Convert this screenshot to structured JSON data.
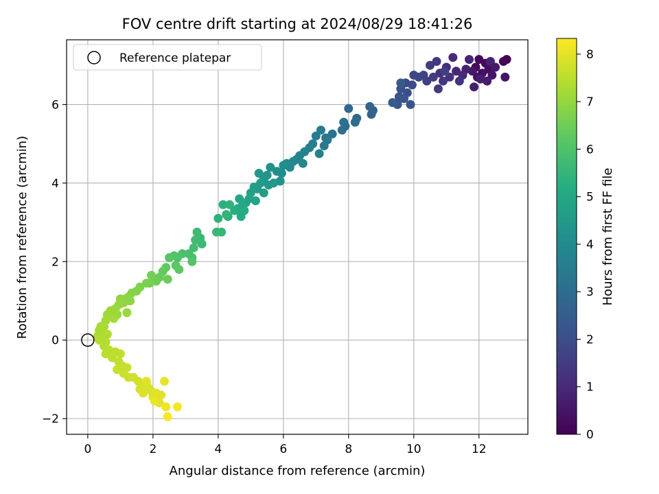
{
  "chart_data": {
    "type": "scatter",
    "title": "FOV centre drift starting at 2024/08/29 18:41:26",
    "xlabel": "Angular distance from reference (arcmin)",
    "ylabel": "Rotation from reference (arcmin)",
    "xlim": [
      -0.65,
      13.5
    ],
    "ylim": [
      -2.4,
      7.65
    ],
    "xticks": [
      0,
      2,
      4,
      6,
      8,
      10,
      12
    ],
    "yticks": [
      -2,
      0,
      2,
      4,
      6
    ],
    "grid": true,
    "legend": {
      "position": "top-left",
      "entries": [
        "Reference platepar"
      ]
    },
    "reference_point": {
      "x": 0,
      "y": 0,
      "label": "Reference platepar"
    },
    "colorbar": {
      "label": "Hours from first FF file",
      "min": 0,
      "max": 8.33,
      "ticks": [
        0,
        1,
        2,
        3,
        4,
        5,
        6,
        7,
        8
      ],
      "colormap": "viridis"
    },
    "series": [
      {
        "color_by": "hours",
        "points": [
          [
            12.85,
            7.15,
            0.05
          ],
          [
            12.75,
            7.1,
            0.1
          ],
          [
            12.0,
            7.15,
            0.15
          ],
          [
            12.2,
            7.05,
            0.2
          ],
          [
            11.9,
            6.95,
            0.25
          ],
          [
            12.3,
            6.9,
            0.3
          ],
          [
            12.1,
            6.8,
            0.35
          ],
          [
            11.95,
            6.7,
            0.4
          ],
          [
            12.4,
            6.75,
            0.45
          ],
          [
            12.8,
            6.7,
            0.5
          ],
          [
            11.8,
            6.85,
            0.55
          ],
          [
            12.5,
            6.95,
            0.6
          ],
          [
            12.25,
            6.6,
            0.65
          ],
          [
            11.85,
            6.45,
            0.7
          ],
          [
            12.05,
            6.65,
            0.75
          ],
          [
            11.6,
            6.9,
            0.8
          ],
          [
            12.35,
            7.1,
            0.85
          ],
          [
            11.7,
            7.15,
            0.9
          ],
          [
            11.3,
            6.85,
            0.95
          ],
          [
            11.5,
            6.75,
            1.0
          ],
          [
            11.2,
            7.2,
            1.05
          ],
          [
            11.0,
            6.95,
            1.1
          ],
          [
            10.8,
            6.8,
            1.15
          ],
          [
            11.4,
            6.6,
            1.2
          ],
          [
            11.1,
            6.7,
            1.25
          ],
          [
            10.9,
            6.6,
            1.3
          ],
          [
            10.7,
            7.1,
            1.35
          ],
          [
            10.5,
            7.0,
            1.4
          ],
          [
            10.75,
            6.4,
            1.45
          ],
          [
            10.6,
            6.7,
            1.5
          ],
          [
            10.4,
            6.6,
            1.55
          ],
          [
            10.95,
            6.85,
            1.6
          ],
          [
            10.3,
            6.75,
            1.7
          ],
          [
            10.0,
            6.75,
            1.75
          ],
          [
            10.15,
            6.7,
            1.8
          ],
          [
            9.75,
            6.55,
            1.9
          ],
          [
            9.95,
            6.5,
            1.95
          ],
          [
            9.8,
            6.3,
            2.0
          ],
          [
            9.6,
            6.4,
            2.1
          ],
          [
            9.55,
            6.2,
            2.15
          ],
          [
            9.7,
            6.15,
            2.2
          ],
          [
            9.9,
            6.0,
            2.25
          ],
          [
            9.5,
            6.0,
            2.3
          ],
          [
            9.35,
            6.05,
            2.4
          ],
          [
            9.6,
            6.55,
            2.45
          ],
          [
            8.75,
            5.85,
            2.6
          ],
          [
            8.65,
            5.95,
            2.65
          ],
          [
            8.7,
            5.75,
            2.7
          ],
          [
            8.25,
            5.65,
            2.8
          ],
          [
            8.0,
            5.9,
            2.85
          ],
          [
            8.2,
            5.55,
            2.95
          ],
          [
            7.9,
            5.45,
            3.0
          ],
          [
            7.85,
            5.55,
            3.05
          ],
          [
            7.8,
            5.35,
            3.1
          ],
          [
            7.5,
            5.25,
            3.2
          ],
          [
            7.3,
            5.15,
            3.3
          ],
          [
            7.25,
            4.95,
            3.35
          ],
          [
            7.35,
            5.1,
            3.4
          ],
          [
            7.15,
            5.35,
            3.45
          ],
          [
            7.0,
            5.2,
            3.5
          ],
          [
            6.9,
            5.0,
            3.55
          ],
          [
            6.8,
            4.9,
            3.6
          ],
          [
            7.1,
            4.75,
            3.65
          ],
          [
            6.65,
            4.8,
            3.7
          ],
          [
            6.5,
            4.7,
            3.75
          ],
          [
            6.4,
            4.6,
            3.8
          ],
          [
            6.6,
            4.5,
            3.85
          ],
          [
            6.3,
            4.55,
            3.9
          ],
          [
            6.1,
            4.5,
            3.95
          ],
          [
            6.2,
            4.4,
            4.0
          ],
          [
            6.0,
            4.45,
            4.05
          ],
          [
            5.95,
            4.25,
            4.1
          ],
          [
            5.8,
            4.3,
            4.15
          ],
          [
            5.9,
            4.05,
            4.2
          ],
          [
            5.6,
            4.4,
            4.25
          ],
          [
            5.5,
            4.2,
            4.3
          ],
          [
            5.4,
            4.1,
            4.35
          ],
          [
            5.7,
            4.0,
            4.4
          ],
          [
            5.55,
            3.95,
            4.45
          ],
          [
            5.25,
            4.25,
            4.5
          ],
          [
            5.3,
            4.0,
            4.55
          ],
          [
            5.2,
            3.85,
            4.6
          ],
          [
            5.4,
            3.75,
            4.65
          ],
          [
            5.1,
            3.9,
            4.7
          ],
          [
            5.0,
            3.75,
            4.75
          ],
          [
            4.95,
            3.6,
            4.8
          ],
          [
            4.85,
            3.5,
            4.85
          ],
          [
            5.15,
            3.55,
            4.9
          ],
          [
            4.75,
            3.45,
            4.95
          ],
          [
            4.65,
            3.6,
            5.0
          ],
          [
            4.6,
            3.35,
            5.05
          ],
          [
            4.7,
            3.15,
            5.1
          ],
          [
            4.8,
            3.3,
            5.15
          ],
          [
            4.5,
            3.3,
            5.2
          ],
          [
            4.3,
            3.15,
            5.25
          ],
          [
            4.15,
            3.45,
            5.3
          ],
          [
            4.0,
            3.1,
            5.35
          ],
          [
            4.35,
            3.45,
            5.4
          ],
          [
            4.25,
            3.2,
            5.45
          ],
          [
            4.1,
            2.75,
            5.5
          ],
          [
            3.95,
            2.75,
            5.55
          ],
          [
            3.45,
            2.6,
            5.6
          ],
          [
            3.5,
            2.45,
            5.65
          ],
          [
            3.35,
            2.75,
            5.7
          ],
          [
            3.3,
            2.55,
            5.75
          ],
          [
            3.25,
            2.35,
            5.8
          ],
          [
            3.1,
            2.2,
            5.85
          ],
          [
            3.2,
            2.1,
            5.9
          ],
          [
            2.9,
            2.2,
            5.95
          ],
          [
            2.75,
            2.1,
            6.0
          ],
          [
            2.65,
            2.15,
            6.05
          ],
          [
            3.2,
            2.0,
            6.1
          ],
          [
            2.5,
            2.1,
            6.15
          ],
          [
            2.7,
            1.9,
            6.2
          ],
          [
            2.8,
            1.8,
            6.25
          ],
          [
            2.4,
            1.85,
            6.3
          ],
          [
            2.3,
            1.75,
            6.35
          ],
          [
            2.2,
            1.6,
            6.4
          ],
          [
            2.45,
            1.55,
            6.45
          ],
          [
            2.1,
            1.5,
            6.5
          ],
          [
            1.95,
            1.65,
            6.55
          ],
          [
            1.9,
            1.45,
            6.6
          ],
          [
            1.8,
            1.45,
            6.65
          ],
          [
            1.6,
            1.35,
            6.7
          ],
          [
            1.5,
            1.25,
            6.75
          ],
          [
            1.35,
            1.2,
            6.8
          ],
          [
            1.25,
            1.1,
            6.85
          ],
          [
            1.15,
            1.05,
            6.9
          ],
          [
            1.3,
            1.0,
            6.92
          ],
          [
            1.0,
            1.05,
            6.95
          ],
          [
            1.1,
            0.95,
            7.0
          ],
          [
            0.95,
            0.9,
            7.02
          ],
          [
            0.85,
            0.8,
            7.05
          ],
          [
            1.2,
            0.7,
            7.08
          ],
          [
            0.9,
            0.65,
            7.1
          ],
          [
            0.7,
            0.75,
            7.12
          ],
          [
            0.6,
            0.65,
            7.15
          ],
          [
            0.8,
            0.55,
            7.18
          ],
          [
            0.55,
            0.5,
            7.2
          ],
          [
            0.5,
            0.35,
            7.22
          ],
          [
            0.4,
            0.35,
            7.25
          ],
          [
            0.35,
            0.25,
            7.28
          ],
          [
            0.45,
            0.15,
            7.3
          ],
          [
            0.3,
            0.1,
            7.32
          ],
          [
            0.6,
            0.15,
            7.35
          ],
          [
            0.35,
            0.0,
            7.38
          ],
          [
            0.55,
            -0.05,
            7.4
          ],
          [
            0.5,
            -0.15,
            7.42
          ],
          [
            0.65,
            -0.25,
            7.45
          ],
          [
            0.55,
            -0.35,
            7.48
          ],
          [
            0.85,
            -0.3,
            7.5
          ],
          [
            0.75,
            -0.45,
            7.52
          ],
          [
            1.0,
            -0.35,
            7.55
          ],
          [
            0.95,
            -0.55,
            7.58
          ],
          [
            1.05,
            -0.65,
            7.6
          ],
          [
            0.9,
            -0.75,
            7.62
          ],
          [
            1.2,
            -0.7,
            7.65
          ],
          [
            1.1,
            -0.85,
            7.68
          ],
          [
            1.25,
            -0.95,
            7.7
          ],
          [
            1.4,
            -0.95,
            7.72
          ],
          [
            1.55,
            -1.05,
            7.75
          ],
          [
            1.65,
            -1.1,
            7.78
          ],
          [
            1.75,
            -1.15,
            7.8
          ],
          [
            1.6,
            -1.25,
            7.82
          ],
          [
            1.85,
            -1.2,
            7.85
          ],
          [
            1.95,
            -1.3,
            7.88
          ],
          [
            1.7,
            -1.35,
            7.9
          ],
          [
            2.0,
            -1.45,
            7.92
          ],
          [
            2.1,
            -1.35,
            7.95
          ],
          [
            2.25,
            -1.4,
            7.97
          ],
          [
            1.8,
            -1.05,
            7.98
          ],
          [
            2.2,
            -1.6,
            8.0
          ],
          [
            2.35,
            -1.05,
            8.05
          ],
          [
            2.05,
            -1.55,
            8.1
          ],
          [
            2.4,
            -1.7,
            8.15
          ],
          [
            2.75,
            -1.7,
            8.2
          ],
          [
            2.45,
            -1.95,
            8.25
          ]
        ]
      }
    ]
  }
}
